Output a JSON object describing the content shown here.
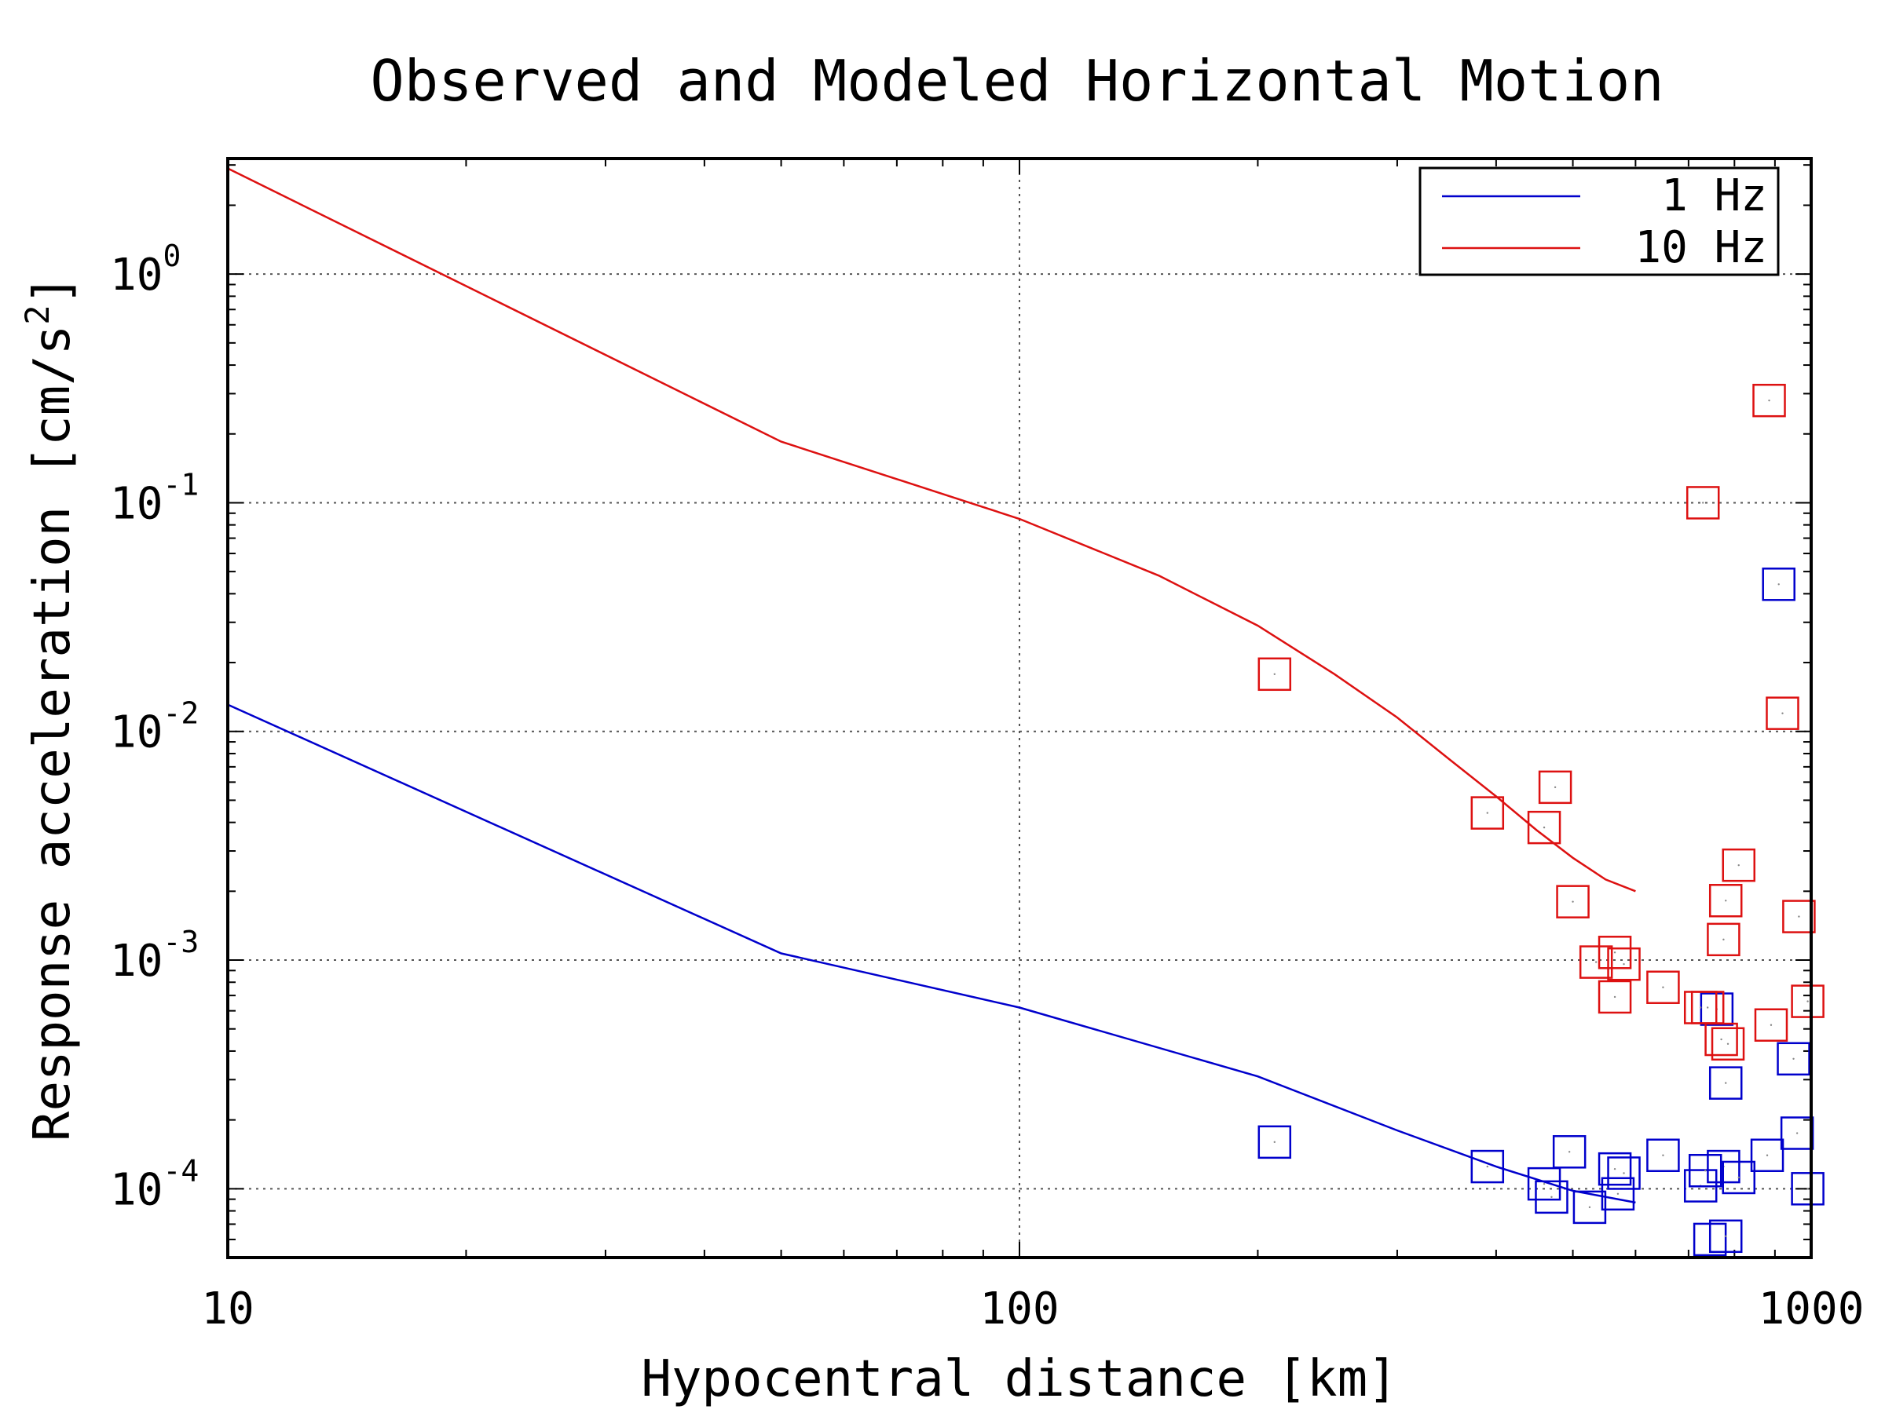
{
  "chart_data": {
    "type": "scatter",
    "title": "Observed and Modeled Horizontal Motion",
    "xlabel": "Hypocentral distance [km]",
    "ylabel": "Response acceleration [cm/s^2]",
    "xscale": "log",
    "yscale": "log",
    "xlim": [
      10,
      1000
    ],
    "ylim": [
      5e-05,
      3.2
    ],
    "grid": true,
    "x_ticks": [
      {
        "value": 10,
        "label": "10"
      },
      {
        "value": 100,
        "label": "100"
      },
      {
        "value": 1000,
        "label": "1000"
      }
    ],
    "y_ticks": [
      {
        "value": 1,
        "base": "10",
        "exp": "0"
      },
      {
        "value": 0.1,
        "base": "10",
        "exp": "-1"
      },
      {
        "value": 0.01,
        "base": "10",
        "exp": "-2"
      },
      {
        "value": 0.001,
        "base": "10",
        "exp": "-3"
      },
      {
        "value": 0.0001,
        "base": "10",
        "exp": "-4"
      }
    ],
    "legend": {
      "position": "top-right",
      "entries": [
        {
          "label": "1 Hz",
          "color": "#0000cc"
        },
        {
          "label": "10 Hz",
          "color": "#dd1111"
        }
      ]
    },
    "series": [
      {
        "name": "1 Hz",
        "kind": "model-line",
        "color": "#0000cc",
        "x": [
          10,
          50,
          100,
          200,
          300,
          400,
          500,
          600
        ],
        "y": [
          0.0131,
          0.00107,
          0.00062,
          0.00031,
          0.00018,
          0.000125,
          9.8e-05,
          8.7e-05
        ]
      },
      {
        "name": "10 Hz",
        "kind": "model-line",
        "color": "#dd1111",
        "x": [
          10,
          50,
          100,
          150,
          200,
          250,
          300,
          350,
          400,
          450,
          500,
          550,
          600
        ],
        "y": [
          2.9,
          0.185,
          0.085,
          0.048,
          0.029,
          0.0178,
          0.0115,
          0.0075,
          0.0052,
          0.0037,
          0.0028,
          0.00225,
          0.002
        ]
      },
      {
        "name": "1 Hz",
        "kind": "observed",
        "color": "#0000cc",
        "x": [
          210,
          390,
          460,
          470,
          495,
          525,
          565,
          570,
          580,
          650,
          725,
          735,
          745,
          760,
          775,
          780,
          780,
          810,
          880,
          910,
          950,
          960,
          990
        ],
        "y": [
          0.00016,
          0.000125,
          0.000105,
          9.2e-05,
          0.000145,
          8.3e-05,
          0.000122,
          9.5e-05,
          0.000117,
          0.00014,
          0.000103,
          0.00012,
          6e-05,
          0.00061,
          0.000125,
          6.2e-05,
          0.00029,
          0.000112,
          0.00014,
          0.044,
          0.00037,
          0.000175,
          0.0001
        ]
      },
      {
        "name": "10 Hz",
        "kind": "observed",
        "color": "#dd1111",
        "x": [
          210,
          390,
          460,
          475,
          500,
          535,
          565,
          565,
          580,
          650,
          725,
          730,
          740,
          770,
          775,
          780,
          785,
          810,
          885,
          890,
          920,
          965,
          990
        ],
        "y": [
          0.0178,
          0.0044,
          0.0038,
          0.0057,
          0.0018,
          0.00098,
          0.00108,
          0.00069,
          0.00096,
          0.00076,
          0.00062,
          0.1,
          0.00062,
          0.00045,
          0.00123,
          0.00182,
          0.00043,
          0.0026,
          0.28,
          0.00052,
          0.012,
          0.00155,
          0.00066
        ]
      }
    ]
  }
}
